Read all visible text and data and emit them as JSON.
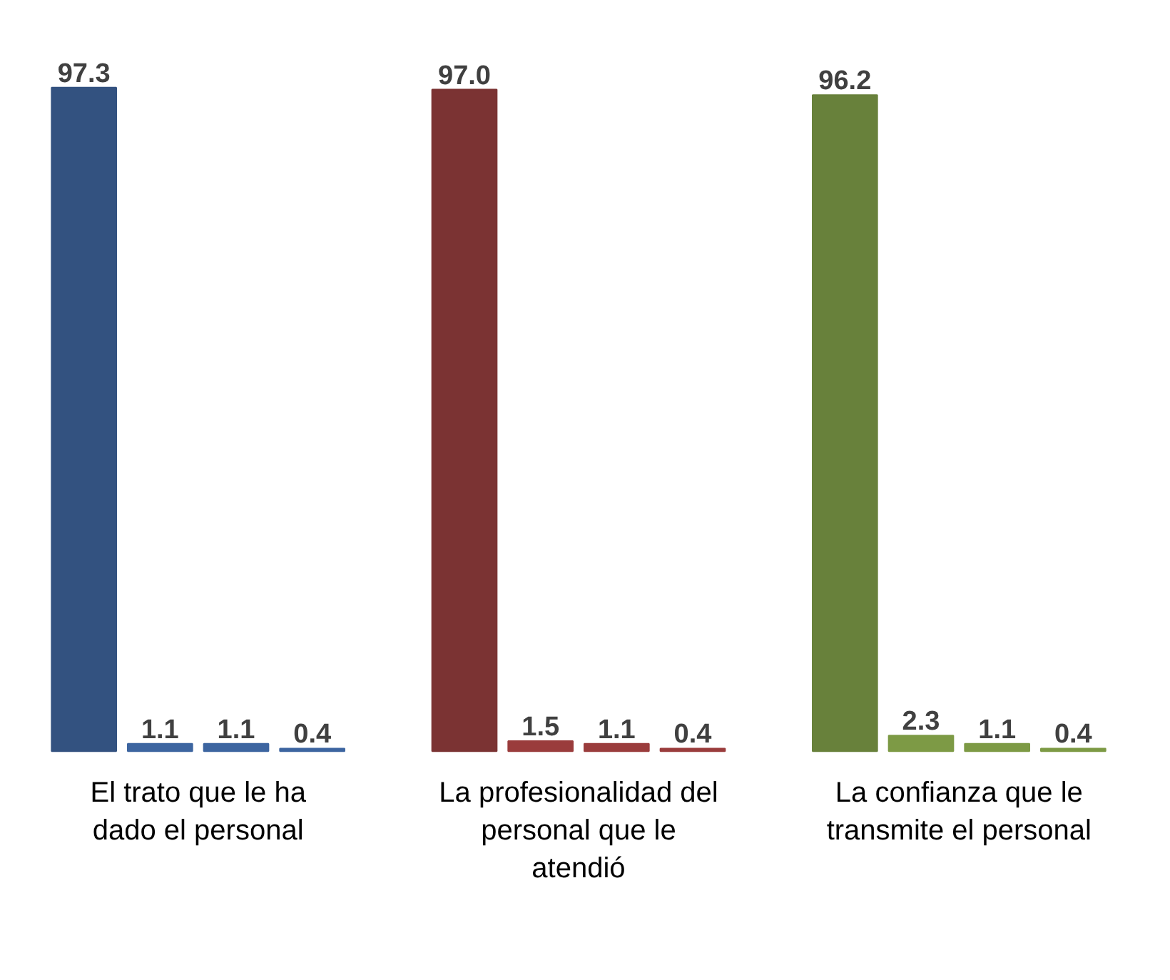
{
  "chart_data": {
    "type": "bar",
    "categories": [
      "El trato que le ha dado el personal",
      "La profesionalidad del personal que le atendió",
      "La confianza que le transmite el personal"
    ],
    "series": [
      {
        "colors": [
          "#335280",
          "#7b3333",
          "#68813b"
        ],
        "values": [
          97.3,
          97.0,
          96.2
        ],
        "value_labels": [
          "97.3",
          "97.0",
          "96.2"
        ]
      },
      {
        "colors": [
          "#3d65a0",
          "#9a3c3c",
          "#7d9a45"
        ],
        "values": [
          1.1,
          1.5,
          2.3
        ],
        "value_labels": [
          "1.1",
          "1.5",
          "2.3"
        ]
      },
      {
        "colors": [
          "#3d65a0",
          "#9a3c3c",
          "#7d9a45"
        ],
        "values": [
          1.1,
          1.1,
          1.1
        ],
        "value_labels": [
          "1.1",
          "1.1",
          "1.1"
        ]
      },
      {
        "colors": [
          "#3d65a0",
          "#9a3c3c",
          "#7d9a45"
        ],
        "values": [
          0.4,
          0.4,
          0.4
        ],
        "value_labels": [
          "0.4",
          "0.4",
          "0.4"
        ]
      }
    ]
  }
}
